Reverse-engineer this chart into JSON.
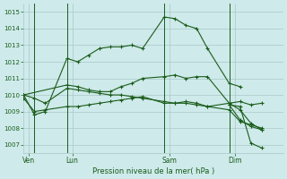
{
  "bg_color": "#ceeaea",
  "grid_color": "#aac8c8",
  "line_color": "#1a5c1a",
  "title": "Pression niveau de la mer( hPa )",
  "ylim": [
    1006.5,
    1015.5
  ],
  "yticks": [
    1007,
    1008,
    1009,
    1010,
    1011,
    1012,
    1013,
    1014,
    1015
  ],
  "xlim": [
    0,
    24
  ],
  "day_labels": [
    "Ven",
    "Lun",
    "Sam",
    "Dim"
  ],
  "day_positions": [
    0.5,
    4.5,
    13.5,
    19.5
  ],
  "vline_positions": [
    1,
    4,
    13,
    19
  ],
  "series": [
    {
      "x": [
        0,
        1,
        2,
        4,
        5,
        6,
        7,
        8,
        9,
        10,
        11,
        13,
        14,
        15,
        16,
        17,
        19,
        20
      ],
      "y": [
        1010.0,
        1008.8,
        1009.0,
        1012.2,
        1012.0,
        1012.4,
        1012.8,
        1012.9,
        1012.9,
        1013.0,
        1012.8,
        1014.7,
        1014.6,
        1014.2,
        1014.0,
        1012.8,
        1010.7,
        1010.5
      ]
    },
    {
      "x": [
        0,
        1,
        2,
        4,
        5,
        6,
        7,
        8,
        9,
        10,
        11,
        13,
        14,
        15,
        16,
        17,
        19,
        20,
        21,
        22
      ],
      "y": [
        1010.0,
        1009.8,
        1009.5,
        1010.4,
        1010.3,
        1010.2,
        1010.1,
        1010.0,
        1010.0,
        1009.9,
        1009.8,
        1009.6,
        1009.5,
        1009.5,
        1009.4,
        1009.3,
        1009.5,
        1009.6,
        1009.4,
        1009.5
      ]
    },
    {
      "x": [
        0,
        1,
        2,
        4,
        5,
        6,
        7,
        8,
        9,
        10,
        11,
        13,
        14,
        15,
        16,
        17,
        19,
        20,
        21,
        22
      ],
      "y": [
        1009.8,
        1009.0,
        1009.1,
        1009.3,
        1009.3,
        1009.4,
        1009.5,
        1009.6,
        1009.7,
        1009.8,
        1009.9,
        1009.5,
        1009.5,
        1009.6,
        1009.5,
        1009.3,
        1009.1,
        1008.4,
        1008.2,
        1008.0
      ]
    },
    {
      "x": [
        0,
        4,
        5,
        6,
        7,
        8,
        9,
        10,
        11,
        13,
        14,
        15,
        16,
        17,
        19,
        20,
        21,
        22
      ],
      "y": [
        1010.0,
        1010.6,
        1010.5,
        1010.3,
        1010.2,
        1010.2,
        1010.5,
        1010.7,
        1011.0,
        1011.1,
        1011.2,
        1011.0,
        1011.1,
        1011.1,
        1009.5,
        1009.1,
        1008.3,
        1007.9
      ]
    },
    {
      "x": [
        19,
        20,
        21,
        22
      ],
      "y": [
        1009.4,
        1009.3,
        1007.1,
        1006.8
      ]
    },
    {
      "x": [
        19,
        20,
        21,
        22
      ],
      "y": [
        1009.4,
        1008.5,
        1008.1,
        1007.9
      ]
    }
  ]
}
